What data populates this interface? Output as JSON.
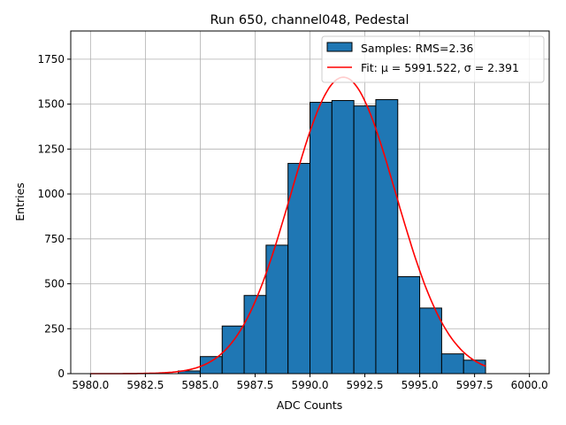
{
  "chart_data": {
    "type": "bar",
    "title": "Run 650, channel048, Pedestal",
    "xlabel": "ADC Counts",
    "ylabel": "Entries",
    "xlim": [
      5979.1,
      6000.9
    ],
    "ylim": [
      0,
      1907
    ],
    "xticks": [
      5980.0,
      5982.5,
      5985.0,
      5987.5,
      5990.0,
      5992.5,
      5995.0,
      5997.5,
      6000.0
    ],
    "xtick_labels": [
      "5980.0",
      "5982.5",
      "5985.0",
      "5987.5",
      "5990.0",
      "5992.5",
      "5995.0",
      "5997.5",
      "6000.0"
    ],
    "yticks": [
      0,
      250,
      500,
      750,
      1000,
      1250,
      1500,
      1750
    ],
    "ytick_labels": [
      "0",
      "250",
      "500",
      "750",
      "1000",
      "1250",
      "1500",
      "1750"
    ],
    "grid": true,
    "legend_position": "top-right",
    "bin_width": 1,
    "bin_edges_left": [
      5984,
      5985,
      5986,
      5987,
      5988,
      5989,
      5990,
      5991,
      5992,
      5993,
      5994,
      5995,
      5996,
      5997
    ],
    "values": [
      15,
      95,
      265,
      435,
      715,
      1170,
      1510,
      1520,
      1490,
      1525,
      540,
      365,
      110,
      75
    ],
    "bar_color": "#1f77b4",
    "fit": {
      "mu": 5991.522,
      "sigma": 2.391,
      "amplitude": 1650,
      "x_range": [
        5980,
        5998
      ],
      "color": "#ff0000"
    },
    "legend": [
      {
        "label": "Samples: RMS=2.36",
        "kind": "patch"
      },
      {
        "label": "Fit: μ = 5991.522, σ = 2.391",
        "kind": "line"
      }
    ]
  }
}
